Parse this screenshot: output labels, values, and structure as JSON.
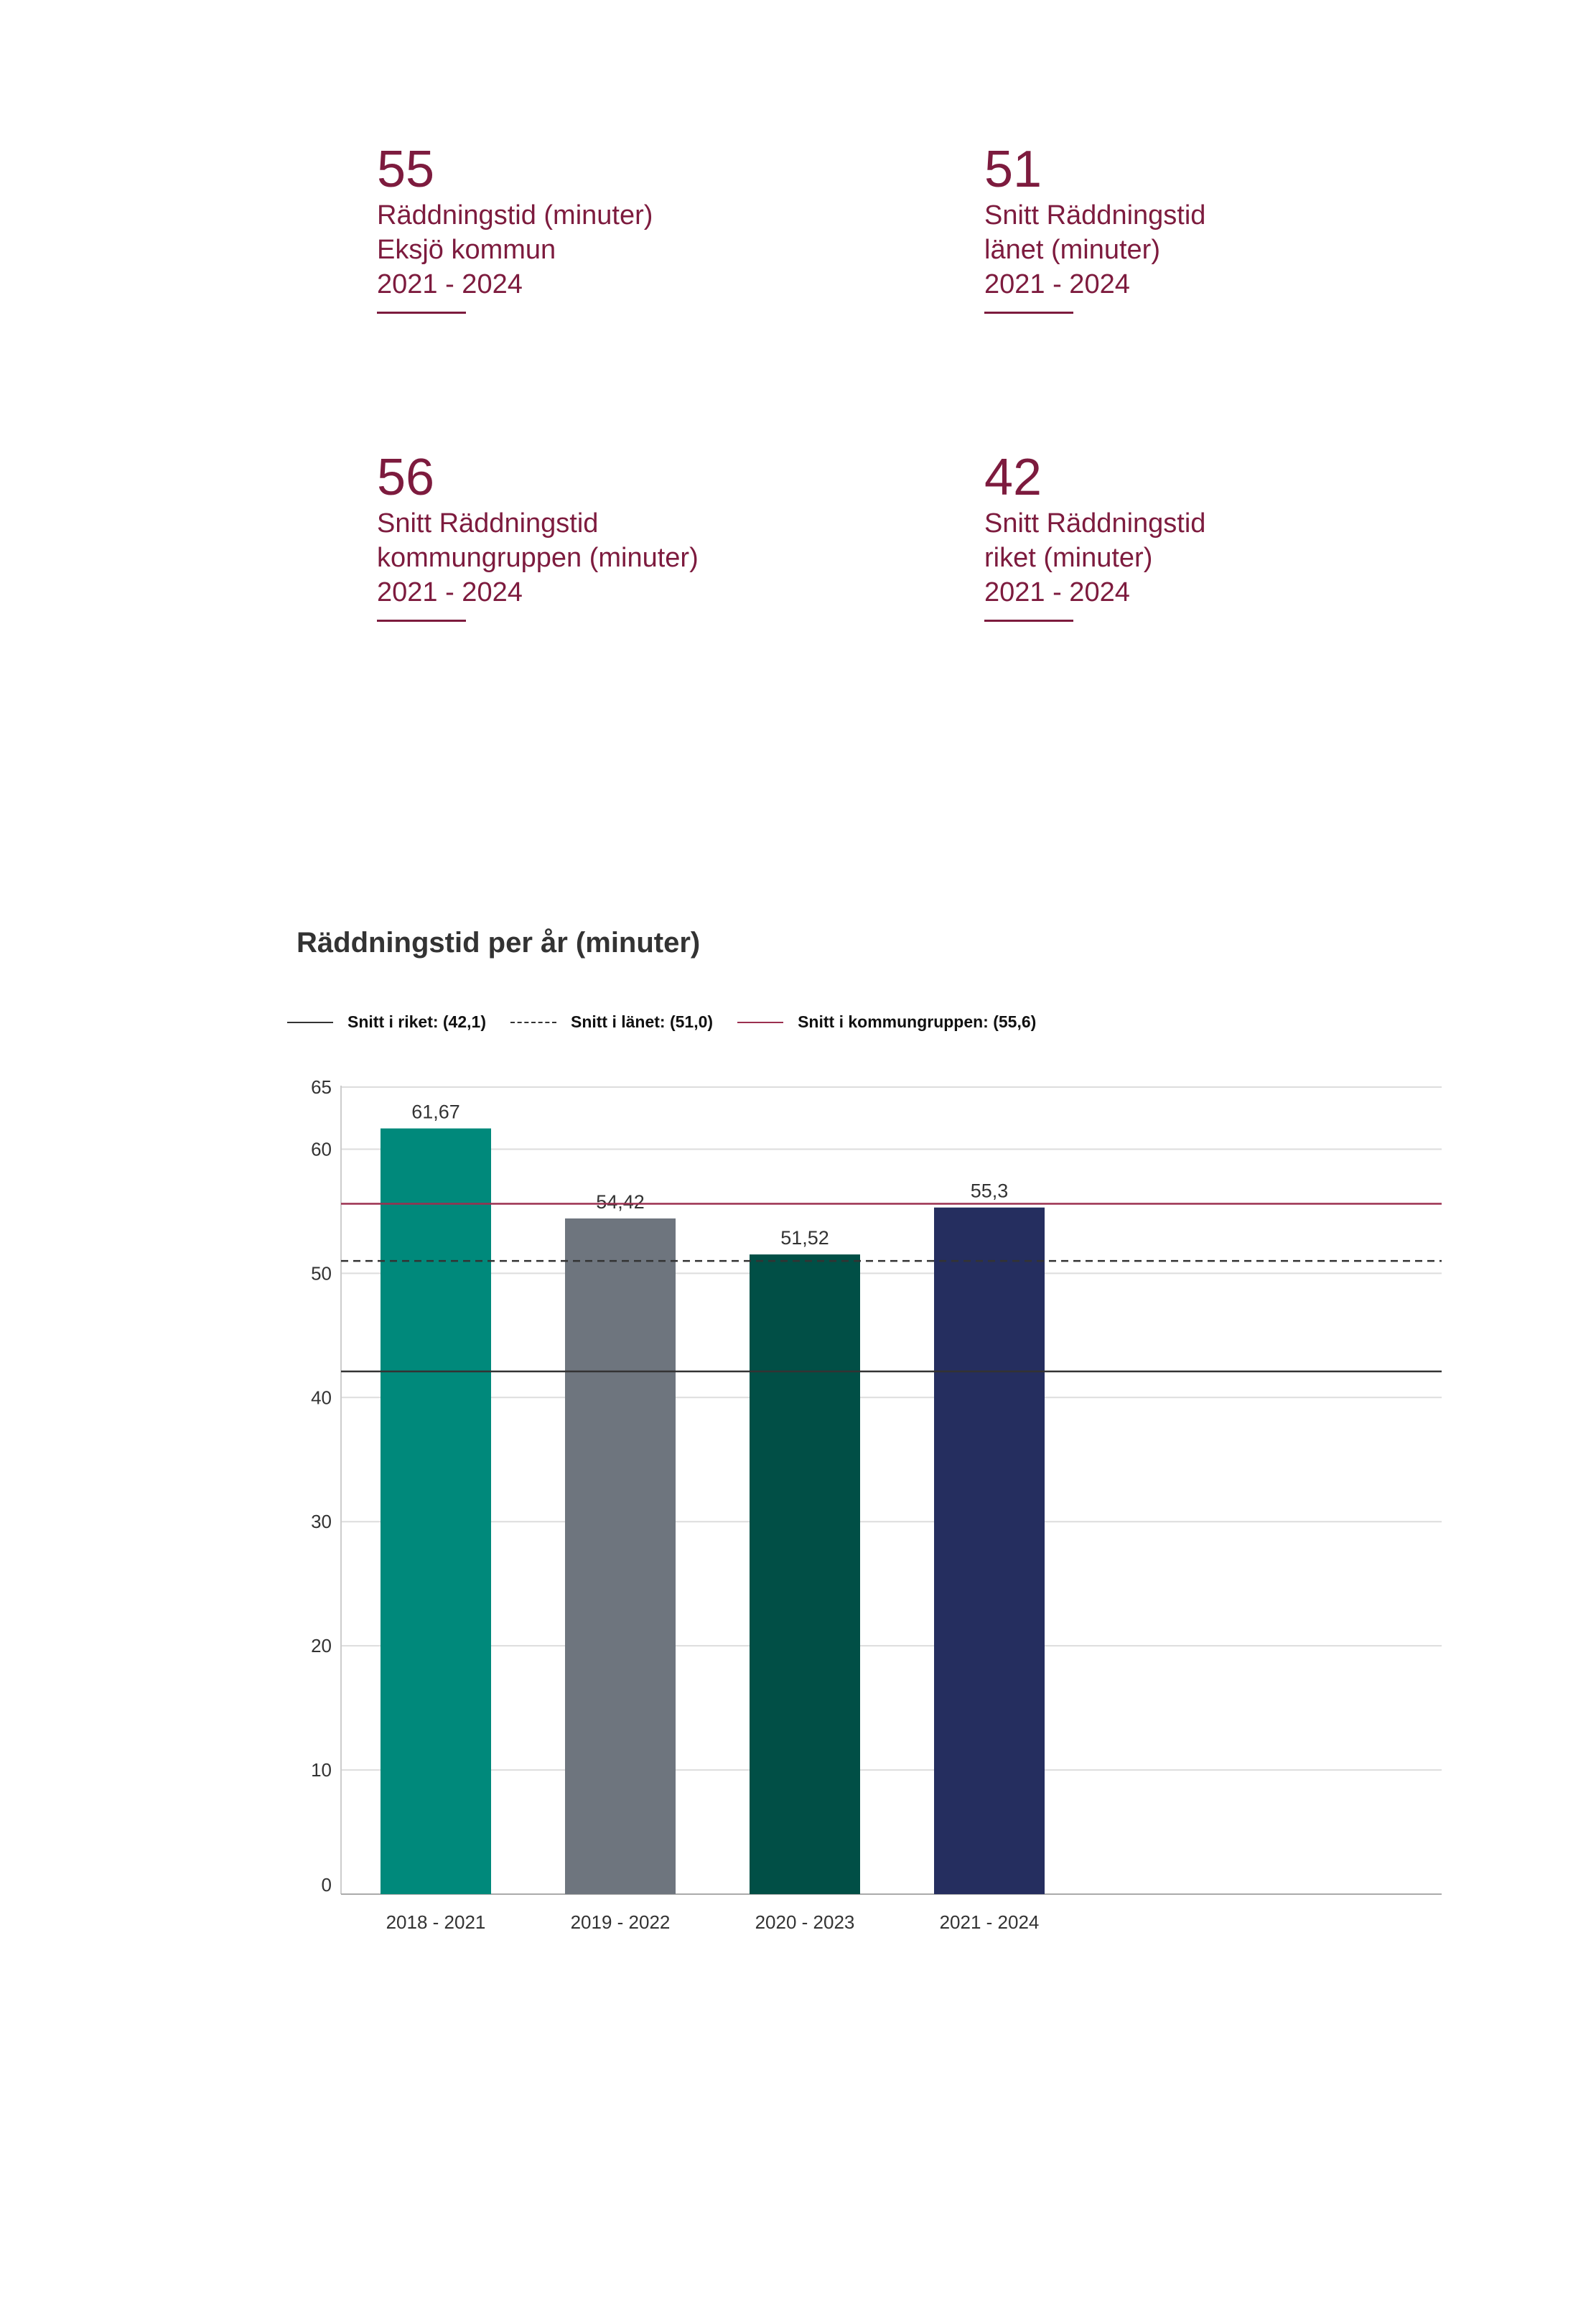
{
  "kpis": [
    {
      "value": "55",
      "line1": "Räddningstid (minuter)",
      "line2": "Eksjö kommun",
      "period": "2021 - 2024"
    },
    {
      "value": "51",
      "line1": "Snitt Räddningstid",
      "line2": "länet (minuter)",
      "period": "2021 - 2024"
    },
    {
      "value": "56",
      "line1": "Snitt Räddningstid",
      "line2": "kommungruppen (minuter)",
      "period": "2021 - 2024"
    },
    {
      "value": "42",
      "line1": "Snitt Räddningstid",
      "line2": "riket (minuter)",
      "period": "2021 - 2024"
    }
  ],
  "colors": {
    "accent": "#7d1b3e",
    "bars": [
      "#00897b",
      "#6e757e",
      "#014f46",
      "#252e5f"
    ],
    "riket_line": "#333333",
    "lanet_line": "#333333",
    "kommungrupp_line": "#9b2f4f",
    "grid": "#dddddd"
  },
  "chart_data": {
    "type": "bar",
    "title": "Räddningstid per år (minuter)",
    "categories": [
      "2018 - 2021",
      "2019 - 2022",
      "2020 - 2023",
      "2021 - 2024"
    ],
    "values": [
      61.67,
      54.42,
      51.52,
      55.3
    ],
    "value_labels": [
      "61,67",
      "54,42",
      "51,52",
      "55,3"
    ],
    "ylim": [
      0,
      65
    ],
    "yticks": [
      0,
      10,
      20,
      30,
      40,
      50,
      60,
      65
    ],
    "xlabel": "",
    "ylabel": "",
    "grid": true,
    "legend_position": "top-left",
    "reference_lines": [
      {
        "name": "riket",
        "label": "Snitt i riket: (42,1)",
        "value": 42.1,
        "style": "solid"
      },
      {
        "name": "lanet",
        "label": "Snitt i länet: (51,0)",
        "value": 51.0,
        "style": "dashed"
      },
      {
        "name": "kommungruppen",
        "label": "Snitt i kommungruppen: (55,6)",
        "value": 55.6,
        "style": "solid"
      }
    ]
  }
}
